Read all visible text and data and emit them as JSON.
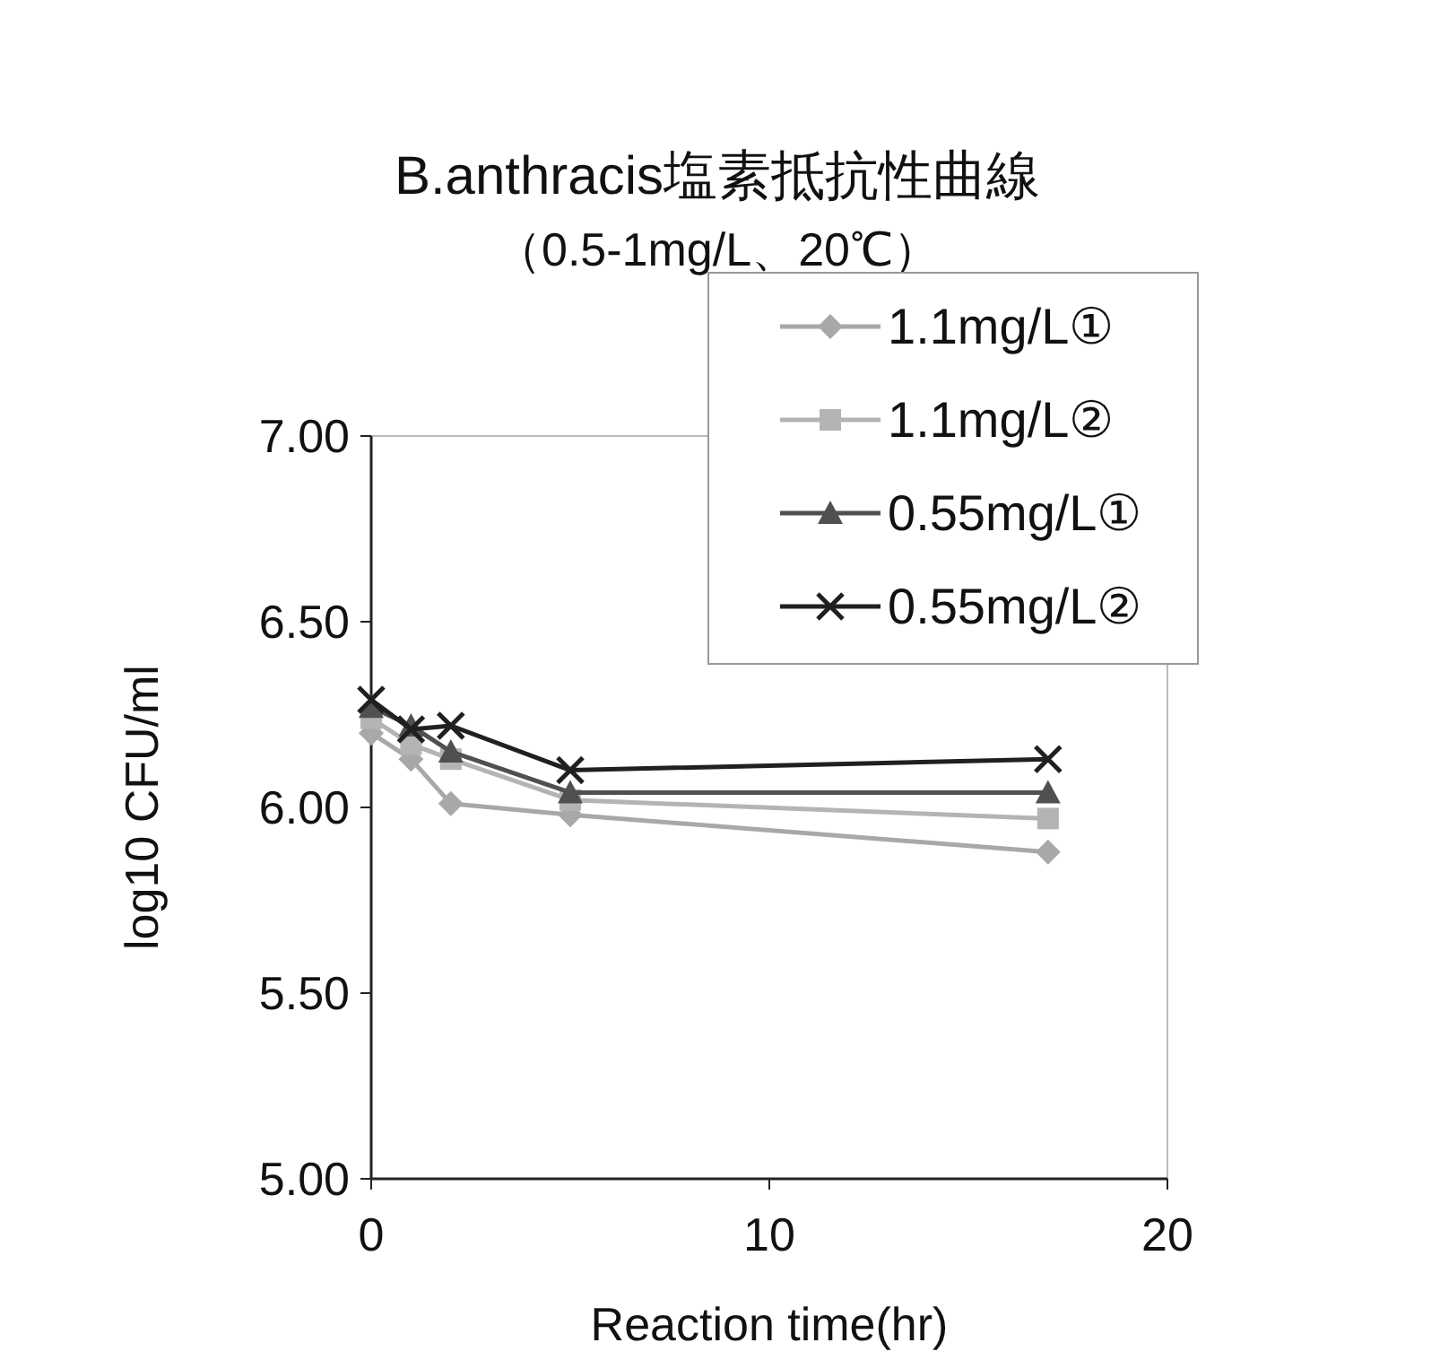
{
  "chart_data": {
    "type": "line",
    "title": "B.anthracis塩素抵抗性曲線",
    "subtitle": "（0.5-1mg/L、20℃）",
    "xlabel": "Reaction time(hr)",
    "ylabel": "log10 CFU/ml",
    "xlim": [
      0,
      20
    ],
    "xticks": [
      0,
      10,
      20
    ],
    "ylim": [
      5,
      7
    ],
    "yticks": [
      {
        "value": 5,
        "label": "5.00"
      },
      {
        "value": 5.5,
        "label": "5.50"
      },
      {
        "value": 6,
        "label": "6.00"
      },
      {
        "value": 6.5,
        "label": "6.50"
      },
      {
        "value": 7,
        "label": "7.00"
      }
    ],
    "legend": "top right",
    "grid": false,
    "line_style": "solid",
    "series": [
      {
        "name": "1.1mg/L①",
        "color": "#a8a8a8",
        "marker": "diamond",
        "x": [
          0,
          1,
          2,
          5,
          17
        ],
        "values": [
          6.2,
          6.13,
          6.01,
          5.98,
          5.88
        ]
      },
      {
        "name": "1.1mg/L②",
        "color": "#b4b4b4",
        "marker": "square",
        "x": [
          0,
          1,
          2,
          5,
          17
        ],
        "values": [
          6.24,
          6.17,
          6.13,
          6.02,
          5.97
        ]
      },
      {
        "name": "0.55mg/L①",
        "color": "#505050",
        "marker": "triangle",
        "x": [
          0,
          1,
          2,
          5,
          17
        ],
        "values": [
          6.27,
          6.22,
          6.15,
          6.04,
          6.04
        ]
      },
      {
        "name": "0.55mg/L②",
        "color": "#202020",
        "marker": "cross",
        "x": [
          0,
          1,
          2,
          5,
          17
        ],
        "values": [
          6.29,
          6.21,
          6.22,
          6.1,
          6.13
        ]
      }
    ]
  }
}
